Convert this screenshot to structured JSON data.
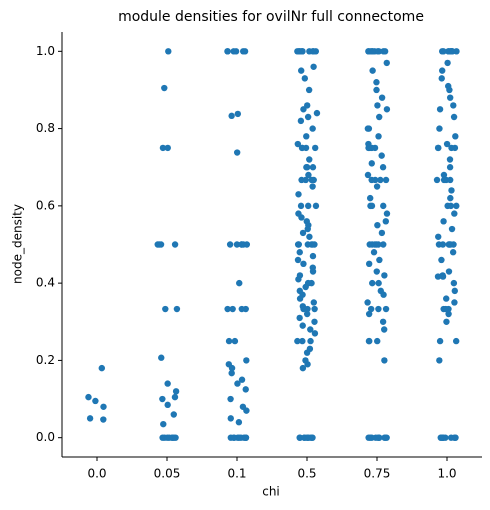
{
  "chart_data": {
    "type": "strip",
    "title": "module densities for ovilNr full connectome",
    "x_label": "chi",
    "y_label": "node_density",
    "categories": [
      "0.0",
      "0.05",
      "0.1",
      "0.5",
      "0.75",
      "1.0"
    ],
    "color": "#1f77b4",
    "ylim": [
      -0.05,
      1.05
    ],
    "yticks": [
      {
        "value": 0,
        "label": "0.0"
      },
      0.2,
      0.4,
      0.6,
      0.8,
      {
        "value": 1,
        "label": "1.0"
      }
    ],
    "values": [
      [
        0.18,
        0.105,
        0.095,
        0.08,
        0.05,
        0.047
      ],
      [
        1.0,
        0.905,
        0.75,
        0.75,
        0.5,
        0.5,
        0.5,
        0.5,
        0.333,
        0.333,
        0.207,
        0.14,
        0.12,
        0.105,
        0.1,
        0.085,
        0.06,
        0.035,
        0,
        0,
        0,
        0,
        0,
        0,
        0,
        0
      ],
      [
        1.0,
        1.0,
        1.0,
        1.0,
        1.0,
        1.0,
        0.838,
        0.833,
        0.738,
        0.5,
        0.5,
        0.5,
        0.5,
        0.5,
        0.5,
        0.4,
        0.333,
        0.333,
        0.333,
        0.333,
        0.25,
        0.25,
        0.2,
        0.19,
        0.18,
        0.167,
        0.15,
        0.14,
        0.125,
        0.1,
        0.08,
        0.07,
        0.05,
        0.04,
        0,
        0,
        0,
        0,
        0,
        0,
        0,
        0,
        0,
        0
      ],
      [
        1.0,
        1.0,
        1.0,
        1.0,
        1.0,
        1.0,
        1.0,
        1.0,
        1.0,
        1.0,
        0.96,
        0.95,
        0.93,
        0.9,
        0.86,
        0.85,
        0.84,
        0.83,
        0.82,
        0.8,
        0.78,
        0.76,
        0.75,
        0.75,
        0.75,
        0.75,
        0.72,
        0.7,
        0.7,
        0.7,
        0.68,
        0.667,
        0.667,
        0.667,
        0.667,
        0.65,
        0.63,
        0.6,
        0.6,
        0.6,
        0.58,
        0.57,
        0.56,
        0.55,
        0.54,
        0.53,
        0.52,
        0.5,
        0.5,
        0.5,
        0.5,
        0.5,
        0.5,
        0.48,
        0.47,
        0.46,
        0.45,
        0.44,
        0.43,
        0.42,
        0.41,
        0.4,
        0.4,
        0.4,
        0.39,
        0.38,
        0.37,
        0.36,
        0.35,
        0.34,
        0.333,
        0.333,
        0.333,
        0.32,
        0.31,
        0.3,
        0.29,
        0.28,
        0.27,
        0.25,
        0.25,
        0.25,
        0.23,
        0.22,
        0.2,
        0.19,
        0.18,
        0,
        0,
        0,
        0,
        0,
        0,
        0,
        0,
        0,
        0
      ],
      [
        1.0,
        1.0,
        1.0,
        1.0,
        1.0,
        1.0,
        1.0,
        1.0,
        1.0,
        1.0,
        0.97,
        0.95,
        0.92,
        0.9,
        0.88,
        0.86,
        0.85,
        0.83,
        0.8,
        0.8,
        0.78,
        0.76,
        0.75,
        0.75,
        0.75,
        0.75,
        0.73,
        0.71,
        0.7,
        0.68,
        0.667,
        0.667,
        0.667,
        0.667,
        0.65,
        0.62,
        0.6,
        0.6,
        0.6,
        0.58,
        0.56,
        0.55,
        0.53,
        0.5,
        0.5,
        0.5,
        0.5,
        0.5,
        0.5,
        0.48,
        0.46,
        0.45,
        0.43,
        0.42,
        0.4,
        0.4,
        0.38,
        0.37,
        0.35,
        0.333,
        0.333,
        0.333,
        0.32,
        0.3,
        0.28,
        0.25,
        0.25,
        0.25,
        0.2,
        0,
        0,
        0,
        0,
        0,
        0,
        0,
        0,
        0,
        0
      ],
      [
        1.0,
        1.0,
        1.0,
        1.0,
        1.0,
        1.0,
        1.0,
        1.0,
        1.0,
        1.0,
        0.97,
        0.95,
        0.93,
        0.91,
        0.9,
        0.88,
        0.86,
        0.85,
        0.83,
        0.8,
        0.78,
        0.76,
        0.75,
        0.75,
        0.75,
        0.75,
        0.72,
        0.7,
        0.68,
        0.667,
        0.667,
        0.667,
        0.667,
        0.64,
        0.62,
        0.6,
        0.6,
        0.6,
        0.58,
        0.56,
        0.54,
        0.52,
        0.5,
        0.5,
        0.5,
        0.5,
        0.5,
        0.5,
        0.48,
        0.46,
        0.43,
        0.42,
        0.417,
        0.417,
        0.4,
        0.38,
        0.36,
        0.35,
        0.333,
        0.333,
        0.333,
        0.32,
        0.3,
        0.25,
        0.25,
        0.2,
        0,
        0,
        0,
        0,
        0,
        0,
        0,
        0,
        0,
        0
      ]
    ]
  }
}
